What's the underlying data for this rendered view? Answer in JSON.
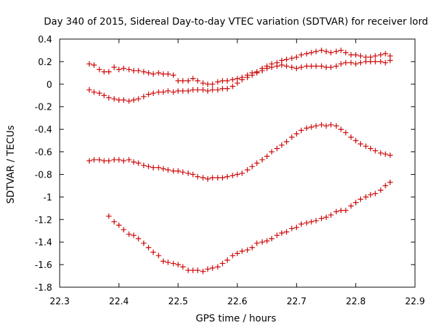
{
  "chart_data": {
    "type": "scatter",
    "title": "Day 340 of 2015, Sidereal Day-to-day VTEC variation (SDTVAR) for receiver lord",
    "xlabel": "GPS time / hours",
    "ylabel": "SDTVAR / TECUs",
    "xlim": [
      22.3,
      22.9
    ],
    "ylim": [
      -1.8,
      0.4
    ],
    "grid": false,
    "legend": "none",
    "marker": "+",
    "marker_color": "#cc0000",
    "xticks": [
      {
        "value": 22.3,
        "label": "22.3"
      },
      {
        "value": 22.4,
        "label": "22.4"
      },
      {
        "value": 22.5,
        "label": "22.5"
      },
      {
        "value": 22.6,
        "label": "22.6"
      },
      {
        "value": 22.7,
        "label": "22.7"
      },
      {
        "value": 22.8,
        "label": "22.8"
      },
      {
        "value": 22.9,
        "label": "22.9"
      }
    ],
    "yticks": [
      {
        "value": 0.4,
        "label": "0.4"
      },
      {
        "value": 0.2,
        "label": "0.2"
      },
      {
        "value": 0,
        "label": "0"
      },
      {
        "value": -0.2,
        "label": "-0.2"
      },
      {
        "value": -0.4,
        "label": "-0.4"
      },
      {
        "value": -0.6,
        "label": "-0.6"
      },
      {
        "value": -0.8,
        "label": "-0.8"
      },
      {
        "value": -1,
        "label": "-1"
      },
      {
        "value": -1.2,
        "label": "-1.2"
      },
      {
        "value": -1.4,
        "label": "-1.4"
      },
      {
        "value": -1.6,
        "label": "-1.6"
      },
      {
        "value": -1.8,
        "label": "-1.8"
      }
    ],
    "series": [
      {
        "name": "series-1",
        "x": [
          22.35,
          22.358,
          22.367,
          22.375,
          22.383,
          22.392,
          22.4,
          22.408,
          22.417,
          22.425,
          22.433,
          22.442,
          22.45,
          22.458,
          22.467,
          22.475,
          22.483,
          22.492,
          22.5,
          22.508,
          22.517,
          22.525,
          22.533,
          22.542,
          22.55,
          22.558,
          22.567,
          22.575,
          22.583,
          22.592,
          22.6,
          22.608,
          22.617,
          22.625,
          22.633,
          22.642,
          22.65,
          22.658,
          22.667,
          22.675,
          22.683,
          22.692,
          22.7,
          22.708,
          22.717,
          22.725,
          22.733,
          22.742,
          22.75,
          22.758,
          22.767,
          22.775,
          22.783,
          22.792,
          22.8,
          22.808,
          22.817,
          22.825,
          22.833,
          22.842,
          22.85,
          22.858
        ],
        "y": [
          0.18,
          0.17,
          0.13,
          0.11,
          0.11,
          0.15,
          0.13,
          0.14,
          0.13,
          0.12,
          0.12,
          0.11,
          0.1,
          0.09,
          0.1,
          0.09,
          0.09,
          0.08,
          0.03,
          0.03,
          0.03,
          0.05,
          0.03,
          0.01,
          0,
          0,
          0.02,
          0.03,
          0.03,
          0.04,
          0.05,
          0.06,
          0.08,
          0.1,
          0.11,
          0.14,
          0.16,
          0.18,
          0.19,
          0.21,
          0.22,
          0.23,
          0.24,
          0.26,
          0.27,
          0.28,
          0.29,
          0.3,
          0.29,
          0.28,
          0.29,
          0.3,
          0.28,
          0.26,
          0.26,
          0.25,
          0.24,
          0.24,
          0.25,
          0.26,
          0.27,
          0.25
        ]
      },
      {
        "name": "series-2",
        "x": [
          22.35,
          22.358,
          22.367,
          22.375,
          22.383,
          22.392,
          22.4,
          22.408,
          22.417,
          22.425,
          22.433,
          22.442,
          22.45,
          22.458,
          22.467,
          22.475,
          22.483,
          22.492,
          22.5,
          22.508,
          22.517,
          22.525,
          22.533,
          22.542,
          22.55,
          22.558,
          22.567,
          22.575,
          22.583,
          22.592,
          22.6,
          22.608,
          22.617,
          22.625,
          22.633,
          22.642,
          22.65,
          22.658,
          22.667,
          22.675,
          22.683,
          22.692,
          22.7,
          22.708,
          22.717,
          22.725,
          22.733,
          22.742,
          22.75,
          22.758,
          22.767,
          22.775,
          22.783,
          22.792,
          22.8,
          22.808,
          22.817,
          22.825,
          22.833,
          22.842,
          22.85,
          22.858
        ],
        "y": [
          -0.05,
          -0.07,
          -0.08,
          -0.1,
          -0.12,
          -0.13,
          -0.14,
          -0.14,
          -0.15,
          -0.14,
          -0.13,
          -0.11,
          -0.09,
          -0.08,
          -0.07,
          -0.07,
          -0.06,
          -0.07,
          -0.06,
          -0.06,
          -0.06,
          -0.05,
          -0.05,
          -0.05,
          -0.06,
          -0.05,
          -0.05,
          -0.04,
          -0.04,
          -0.02,
          0.01,
          0.04,
          0.06,
          0.08,
          0.1,
          0.12,
          0.14,
          0.15,
          0.16,
          0.17,
          0.16,
          0.15,
          0.14,
          0.15,
          0.16,
          0.16,
          0.16,
          0.16,
          0.15,
          0.15,
          0.16,
          0.18,
          0.19,
          0.19,
          0.18,
          0.19,
          0.2,
          0.2,
          0.2,
          0.2,
          0.19,
          0.21
        ]
      },
      {
        "name": "series-3",
        "x": [
          22.35,
          22.358,
          22.367,
          22.375,
          22.383,
          22.392,
          22.4,
          22.408,
          22.417,
          22.425,
          22.433,
          22.442,
          22.45,
          22.458,
          22.467,
          22.475,
          22.483,
          22.492,
          22.5,
          22.508,
          22.517,
          22.525,
          22.533,
          22.542,
          22.55,
          22.558,
          22.567,
          22.575,
          22.583,
          22.592,
          22.6,
          22.608,
          22.617,
          22.625,
          22.633,
          22.642,
          22.65,
          22.658,
          22.667,
          22.675,
          22.683,
          22.692,
          22.7,
          22.708,
          22.717,
          22.725,
          22.733,
          22.742,
          22.75,
          22.758,
          22.767,
          22.775,
          22.783,
          22.792,
          22.8,
          22.808,
          22.817,
          22.825,
          22.833,
          22.842,
          22.85,
          22.858
        ],
        "y": [
          -0.68,
          -0.67,
          -0.67,
          -0.68,
          -0.68,
          -0.67,
          -0.67,
          -0.68,
          -0.67,
          -0.69,
          -0.7,
          -0.72,
          -0.73,
          -0.74,
          -0.74,
          -0.75,
          -0.76,
          -0.77,
          -0.77,
          -0.78,
          -0.79,
          -0.8,
          -0.82,
          -0.83,
          -0.84,
          -0.83,
          -0.83,
          -0.83,
          -0.82,
          -0.81,
          -0.8,
          -0.79,
          -0.76,
          -0.73,
          -0.7,
          -0.67,
          -0.64,
          -0.6,
          -0.57,
          -0.54,
          -0.51,
          -0.47,
          -0.44,
          -0.41,
          -0.39,
          -0.38,
          -0.37,
          -0.36,
          -0.37,
          -0.36,
          -0.37,
          -0.4,
          -0.43,
          -0.47,
          -0.5,
          -0.53,
          -0.55,
          -0.57,
          -0.59,
          -0.61,
          -0.62,
          -0.63
        ]
      },
      {
        "name": "series-4",
        "x": [
          22.383,
          22.392,
          22.4,
          22.408,
          22.417,
          22.425,
          22.433,
          22.442,
          22.45,
          22.458,
          22.467,
          22.475,
          22.483,
          22.492,
          22.5,
          22.508,
          22.517,
          22.525,
          22.533,
          22.542,
          22.55,
          22.558,
          22.567,
          22.575,
          22.583,
          22.592,
          22.6,
          22.608,
          22.617,
          22.625,
          22.633,
          22.642,
          22.65,
          22.658,
          22.667,
          22.675,
          22.683,
          22.692,
          22.7,
          22.708,
          22.717,
          22.725,
          22.733,
          22.742,
          22.75,
          22.758,
          22.767,
          22.775,
          22.783,
          22.792,
          22.8,
          22.808,
          22.817,
          22.825,
          22.833,
          22.842,
          22.85,
          22.858
        ],
        "y": [
          -1.17,
          -1.22,
          -1.25,
          -1.29,
          -1.33,
          -1.34,
          -1.37,
          -1.41,
          -1.45,
          -1.49,
          -1.52,
          -1.57,
          -1.58,
          -1.59,
          -1.6,
          -1.62,
          -1.65,
          -1.65,
          -1.65,
          -1.66,
          -1.64,
          -1.63,
          -1.62,
          -1.59,
          -1.56,
          -1.52,
          -1.5,
          -1.48,
          -1.47,
          -1.45,
          -1.41,
          -1.4,
          -1.39,
          -1.37,
          -1.34,
          -1.32,
          -1.31,
          -1.28,
          -1.27,
          -1.24,
          -1.23,
          -1.22,
          -1.21,
          -1.19,
          -1.18,
          -1.16,
          -1.13,
          -1.12,
          -1.12,
          -1.08,
          -1.05,
          -1.02,
          -1,
          -0.98,
          -0.97,
          -0.94,
          -0.9,
          -0.87
        ]
      }
    ]
  }
}
